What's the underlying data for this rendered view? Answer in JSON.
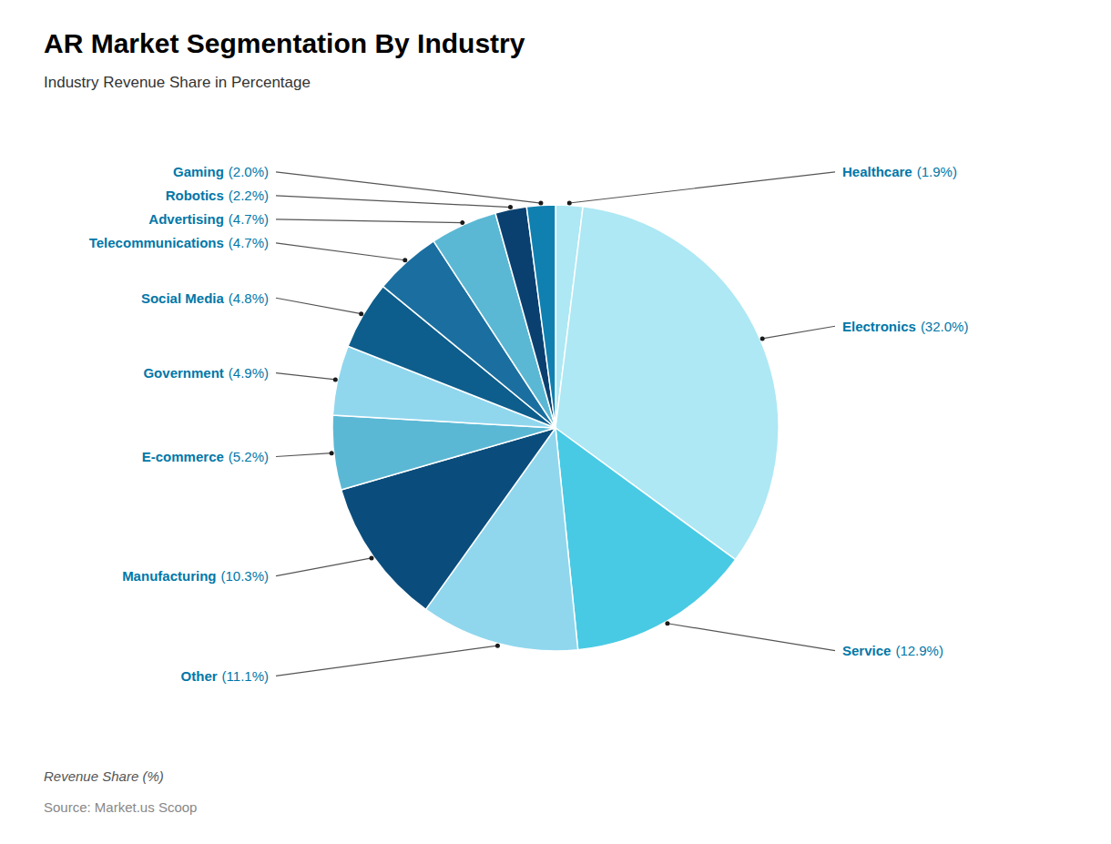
{
  "chart_data": {
    "type": "pie",
    "title": "AR Market Segmentation By Industry",
    "subtitle": "Industry Revenue Share in Percentage",
    "annotations": [
      "Revenue Share (%)",
      "Source: Market.us Scoop"
    ],
    "categories": [
      "Healthcare",
      "Electronics",
      "Service",
      "Other",
      "Manufacturing",
      "E-commerce",
      "Government",
      "Social Media",
      "Telecommunications",
      "Advertising",
      "Robotics",
      "Gaming"
    ],
    "values": [
      1.9,
      32.0,
      12.9,
      11.1,
      10.3,
      5.2,
      4.9,
      4.8,
      4.7,
      4.7,
      2.2,
      2.0
    ],
    "value_labels": [
      "(1.9%)",
      "(32.0%)",
      "(12.9%)",
      "(11.1%)",
      "(10.3%)",
      "(5.2%)",
      "(4.9%)",
      "(4.8%)",
      "(4.7%)",
      "(4.7%)",
      "(2.2%)",
      "(2.0%)"
    ],
    "colors": [
      "#ADE8F4",
      "#ADE8F4",
      "#48CAE4",
      "#90D7EE",
      "#0A4D7C",
      "#5BB8D4",
      "#90D7EE",
      "#0D5E8C",
      "#1A6FA0",
      "#5BB8D4",
      "#0A4070",
      "#1080B0"
    ],
    "data_labels": true
  }
}
